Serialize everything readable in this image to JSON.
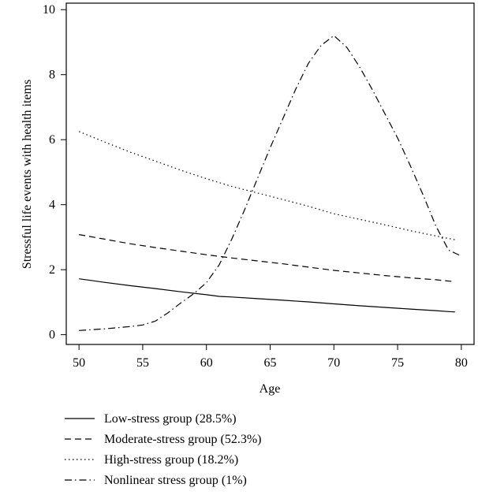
{
  "chart_data": {
    "type": "line",
    "title": "",
    "xlabel": "Age",
    "ylabel": "Stressful life events with health items",
    "xlim": [
      49,
      81
    ],
    "ylim": [
      -0.3,
      10.2
    ],
    "xticks": [
      50,
      55,
      60,
      65,
      70,
      75,
      80
    ],
    "yticks": [
      0,
      2,
      4,
      6,
      8,
      10
    ],
    "grid": false,
    "legend_position": "below",
    "series": [
      {
        "name": "Low-stress group (28.5%)",
        "style": "solid",
        "x": [
          50,
          52,
          54,
          56,
          58,
          60,
          61,
          62,
          64,
          66,
          68,
          70,
          72,
          74,
          76,
          78,
          79,
          79.5
        ],
        "y": [
          1.72,
          1.61,
          1.51,
          1.42,
          1.32,
          1.23,
          1.18,
          1.16,
          1.11,
          1.06,
          1.01,
          0.95,
          0.89,
          0.84,
          0.79,
          0.74,
          0.71,
          0.7
        ]
      },
      {
        "name": "Moderate-stress group (52.3%)",
        "style": "dashed",
        "x": [
          50,
          52,
          54,
          56,
          58,
          60,
          62,
          64,
          66,
          68,
          70,
          72,
          74,
          76,
          78,
          79.5
        ],
        "y": [
          3.08,
          2.94,
          2.8,
          2.68,
          2.57,
          2.46,
          2.36,
          2.27,
          2.18,
          2.08,
          1.98,
          1.9,
          1.82,
          1.75,
          1.69,
          1.63
        ]
      },
      {
        "name": "High-stress group (18.2%)",
        "style": "dotted",
        "x": [
          50,
          52,
          54,
          56,
          58,
          60,
          62,
          64,
          66,
          68,
          70,
          72,
          74,
          76,
          78,
          79.5
        ],
        "y": [
          6.25,
          5.93,
          5.62,
          5.34,
          5.06,
          4.8,
          4.56,
          4.36,
          4.16,
          3.95,
          3.72,
          3.55,
          3.38,
          3.2,
          3.04,
          2.92
        ]
      },
      {
        "name": "Nonlinear stress group (1%)",
        "style": "dotdash",
        "x": [
          50,
          52,
          54,
          55,
          56,
          57,
          58,
          59,
          60,
          61,
          62,
          63,
          64,
          65,
          66,
          67,
          68,
          69,
          70,
          71,
          72,
          73,
          74,
          75,
          76,
          77,
          78,
          79,
          80
        ],
        "y": [
          0.13,
          0.18,
          0.25,
          0.3,
          0.42,
          0.68,
          0.98,
          1.26,
          1.6,
          2.15,
          2.95,
          3.85,
          4.8,
          5.75,
          6.65,
          7.55,
          8.35,
          8.9,
          9.2,
          8.85,
          8.25,
          7.55,
          6.8,
          6.05,
          5.2,
          4.3,
          3.35,
          2.6,
          2.42
        ]
      }
    ]
  }
}
